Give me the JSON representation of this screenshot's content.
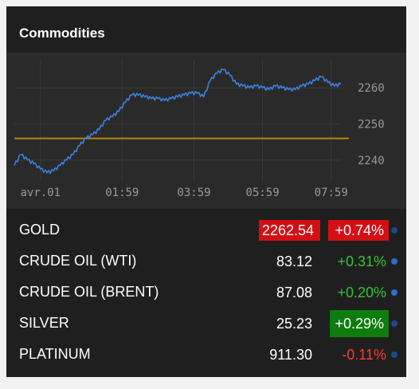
{
  "widget": {
    "title": "Commodities"
  },
  "chart_data": {
    "type": "line",
    "x_ticks": [
      "avr.01",
      "01:59",
      "03:59",
      "05:59",
      "07:59"
    ],
    "y_ticks": [
      2260,
      2250,
      2240
    ],
    "reference_line": 2246,
    "ylim": [
      2234,
      2268
    ],
    "grid": true,
    "series": [
      {
        "x": [
          0,
          2,
          4,
          6,
          8,
          10,
          12,
          14,
          16,
          18,
          20,
          22,
          24,
          26,
          28,
          30,
          32,
          34,
          36,
          38,
          40,
          42,
          44,
          46,
          48,
          50,
          52,
          54,
          56,
          58,
          60,
          62,
          64,
          66,
          68,
          70,
          72,
          74,
          76,
          78,
          80,
          82,
          84,
          86,
          88,
          90,
          92,
          94,
          96,
          98,
          100
        ],
        "values": [
          2238.5,
          2241.5,
          2240,
          2239,
          2237.5,
          2236.5,
          2237,
          2238.5,
          2240,
          2241.5,
          2244,
          2246,
          2247,
          2248.5,
          2251,
          2252,
          2253.5,
          2256,
          2258,
          2258,
          2257.5,
          2257,
          2257,
          2256.5,
          2257,
          2257.5,
          2258,
          2258.5,
          2258.5,
          2257.5,
          2262,
          2264,
          2265,
          2263.5,
          2261,
          2260.5,
          2260,
          2260.5,
          2260,
          2259.5,
          2260.5,
          2260,
          2259.5,
          2259.5,
          2260.5,
          2261,
          2262,
          2263,
          2261.5,
          2260.5,
          2261
        ]
      }
    ],
    "colors": {
      "line": "#3b82e0",
      "reference": "#b8860b",
      "grid": "#3a3a3a",
      "axis_text": "#9a9a9a"
    }
  },
  "rows": [
    {
      "name": "GOLD",
      "price": "2262.54",
      "change": "+0.74%",
      "direction": "up",
      "highlight": "price-and-change-red"
    },
    {
      "name": "CRUDE OIL (WTI)",
      "price": "83.12",
      "change": "+0.31%",
      "direction": "up",
      "highlight": "none"
    },
    {
      "name": "CRUDE OIL (BRENT)",
      "price": "87.08",
      "change": "+0.20%",
      "direction": "up",
      "highlight": "none"
    },
    {
      "name": "SILVER",
      "price": "25.23",
      "change": "+0.29%",
      "direction": "up",
      "highlight": "change-green"
    },
    {
      "name": "PLATINUM",
      "price": "911.30",
      "change": "-0.11%",
      "direction": "down",
      "highlight": "none"
    }
  ]
}
